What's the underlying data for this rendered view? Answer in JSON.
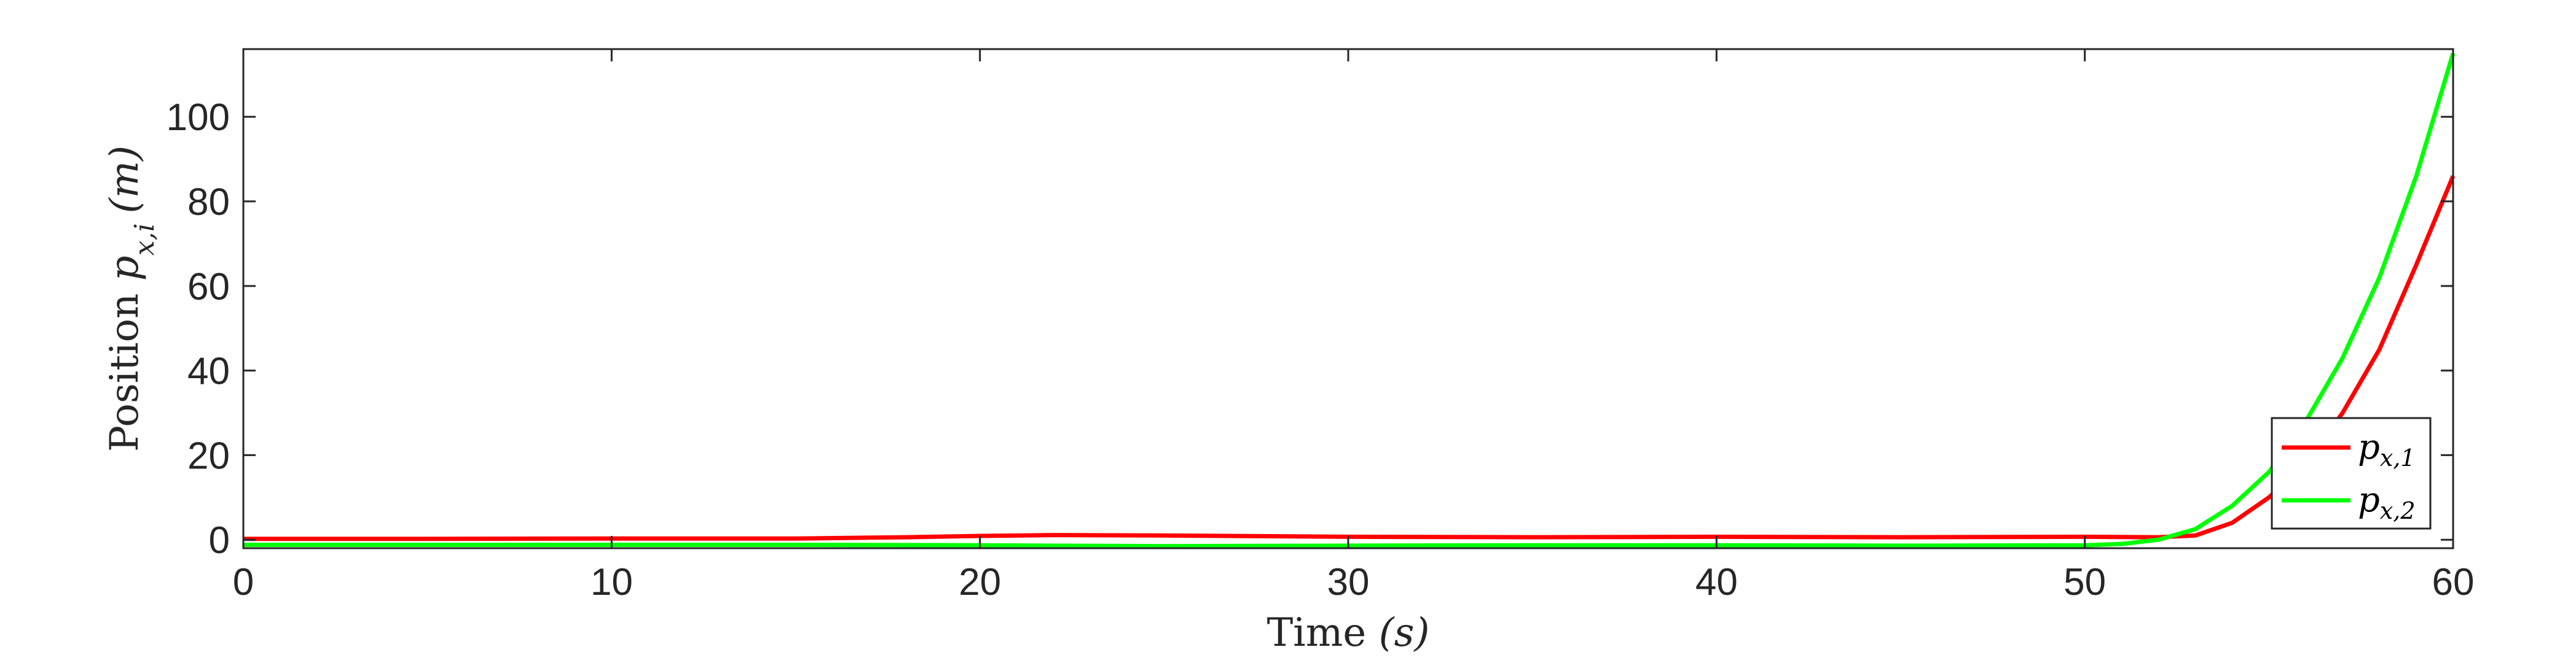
{
  "chart_data": {
    "type": "line",
    "title": "",
    "xlabel": "Time (s)",
    "xlabel_parts": {
      "text": "Time ",
      "math": "(s)"
    },
    "ylabel": "Position p_{x,i} (m)",
    "ylabel_parts": {
      "text": "Position ",
      "var": "p",
      "sub": "x,i",
      "unit": "(m)"
    },
    "xlim": [
      0,
      60
    ],
    "ylim": [
      -2,
      116
    ],
    "xticks": [
      0,
      10,
      20,
      30,
      40,
      50,
      60
    ],
    "yticks": [
      0,
      20,
      40,
      60,
      80,
      100
    ],
    "grid": false,
    "legend_location": "bottom-right",
    "series": [
      {
        "name": "p_{x,1}",
        "legend_var": "p",
        "legend_sub": "x,1",
        "color": "#ff0000",
        "x": [
          0,
          5,
          10,
          15,
          18,
          20,
          22,
          25,
          30,
          35,
          40,
          45,
          50,
          52,
          53,
          54,
          55,
          56,
          57,
          58,
          59,
          60
        ],
        "y": [
          0.2,
          0.2,
          0.3,
          0.3,
          0.6,
          0.9,
          1.1,
          1.0,
          0.7,
          0.6,
          0.7,
          0.6,
          0.7,
          0.6,
          1.0,
          4.0,
          10.0,
          18.0,
          30.0,
          45.0,
          65.0,
          86.0
        ]
      },
      {
        "name": "p_{x,2}",
        "legend_var": "p",
        "legend_sub": "x,2",
        "color": "#00ff00",
        "x": [
          0,
          5,
          10,
          15,
          20,
          22,
          25,
          30,
          35,
          40,
          45,
          50,
          51,
          52,
          53,
          54,
          55,
          56,
          57,
          58,
          59,
          60
        ],
        "y": [
          -1.2,
          -1.2,
          -1.2,
          -1.2,
          -1.3,
          -1.4,
          -1.5,
          -1.4,
          -1.3,
          -1.3,
          -1.4,
          -1.3,
          -1.0,
          0.0,
          2.5,
          8.0,
          16.0,
          28.0,
          43.0,
          62.0,
          86.0,
          115.0
        ]
      }
    ]
  }
}
